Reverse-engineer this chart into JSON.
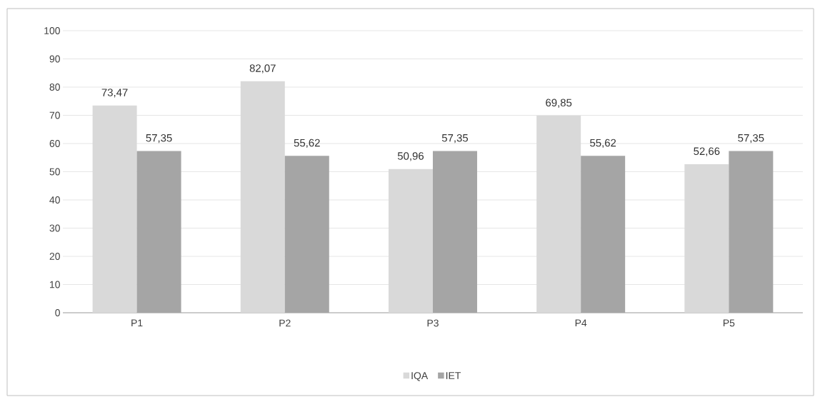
{
  "chart_data": {
    "type": "bar",
    "categories": [
      "P1",
      "P2",
      "P3",
      "P4",
      "P5"
    ],
    "series": [
      {
        "name": "IQA",
        "color": "#d9d9d9",
        "values": [
          73.47,
          82.07,
          50.96,
          69.85,
          52.66
        ],
        "value_labels": [
          "73,47",
          "82,07",
          "50,96",
          "69,85",
          "52,66"
        ]
      },
      {
        "name": "IET",
        "color": "#a5a5a5",
        "values": [
          57.35,
          55.62,
          57.35,
          55.62,
          57.35
        ],
        "value_labels": [
          "57,35",
          "55,62",
          "57,35",
          "55,62",
          "57,35"
        ]
      }
    ],
    "ylim": [
      0,
      100
    ],
    "yticks": [
      0,
      10,
      20,
      30,
      40,
      50,
      60,
      70,
      80,
      90,
      100
    ],
    "grid": "y",
    "legend": "bottom"
  }
}
